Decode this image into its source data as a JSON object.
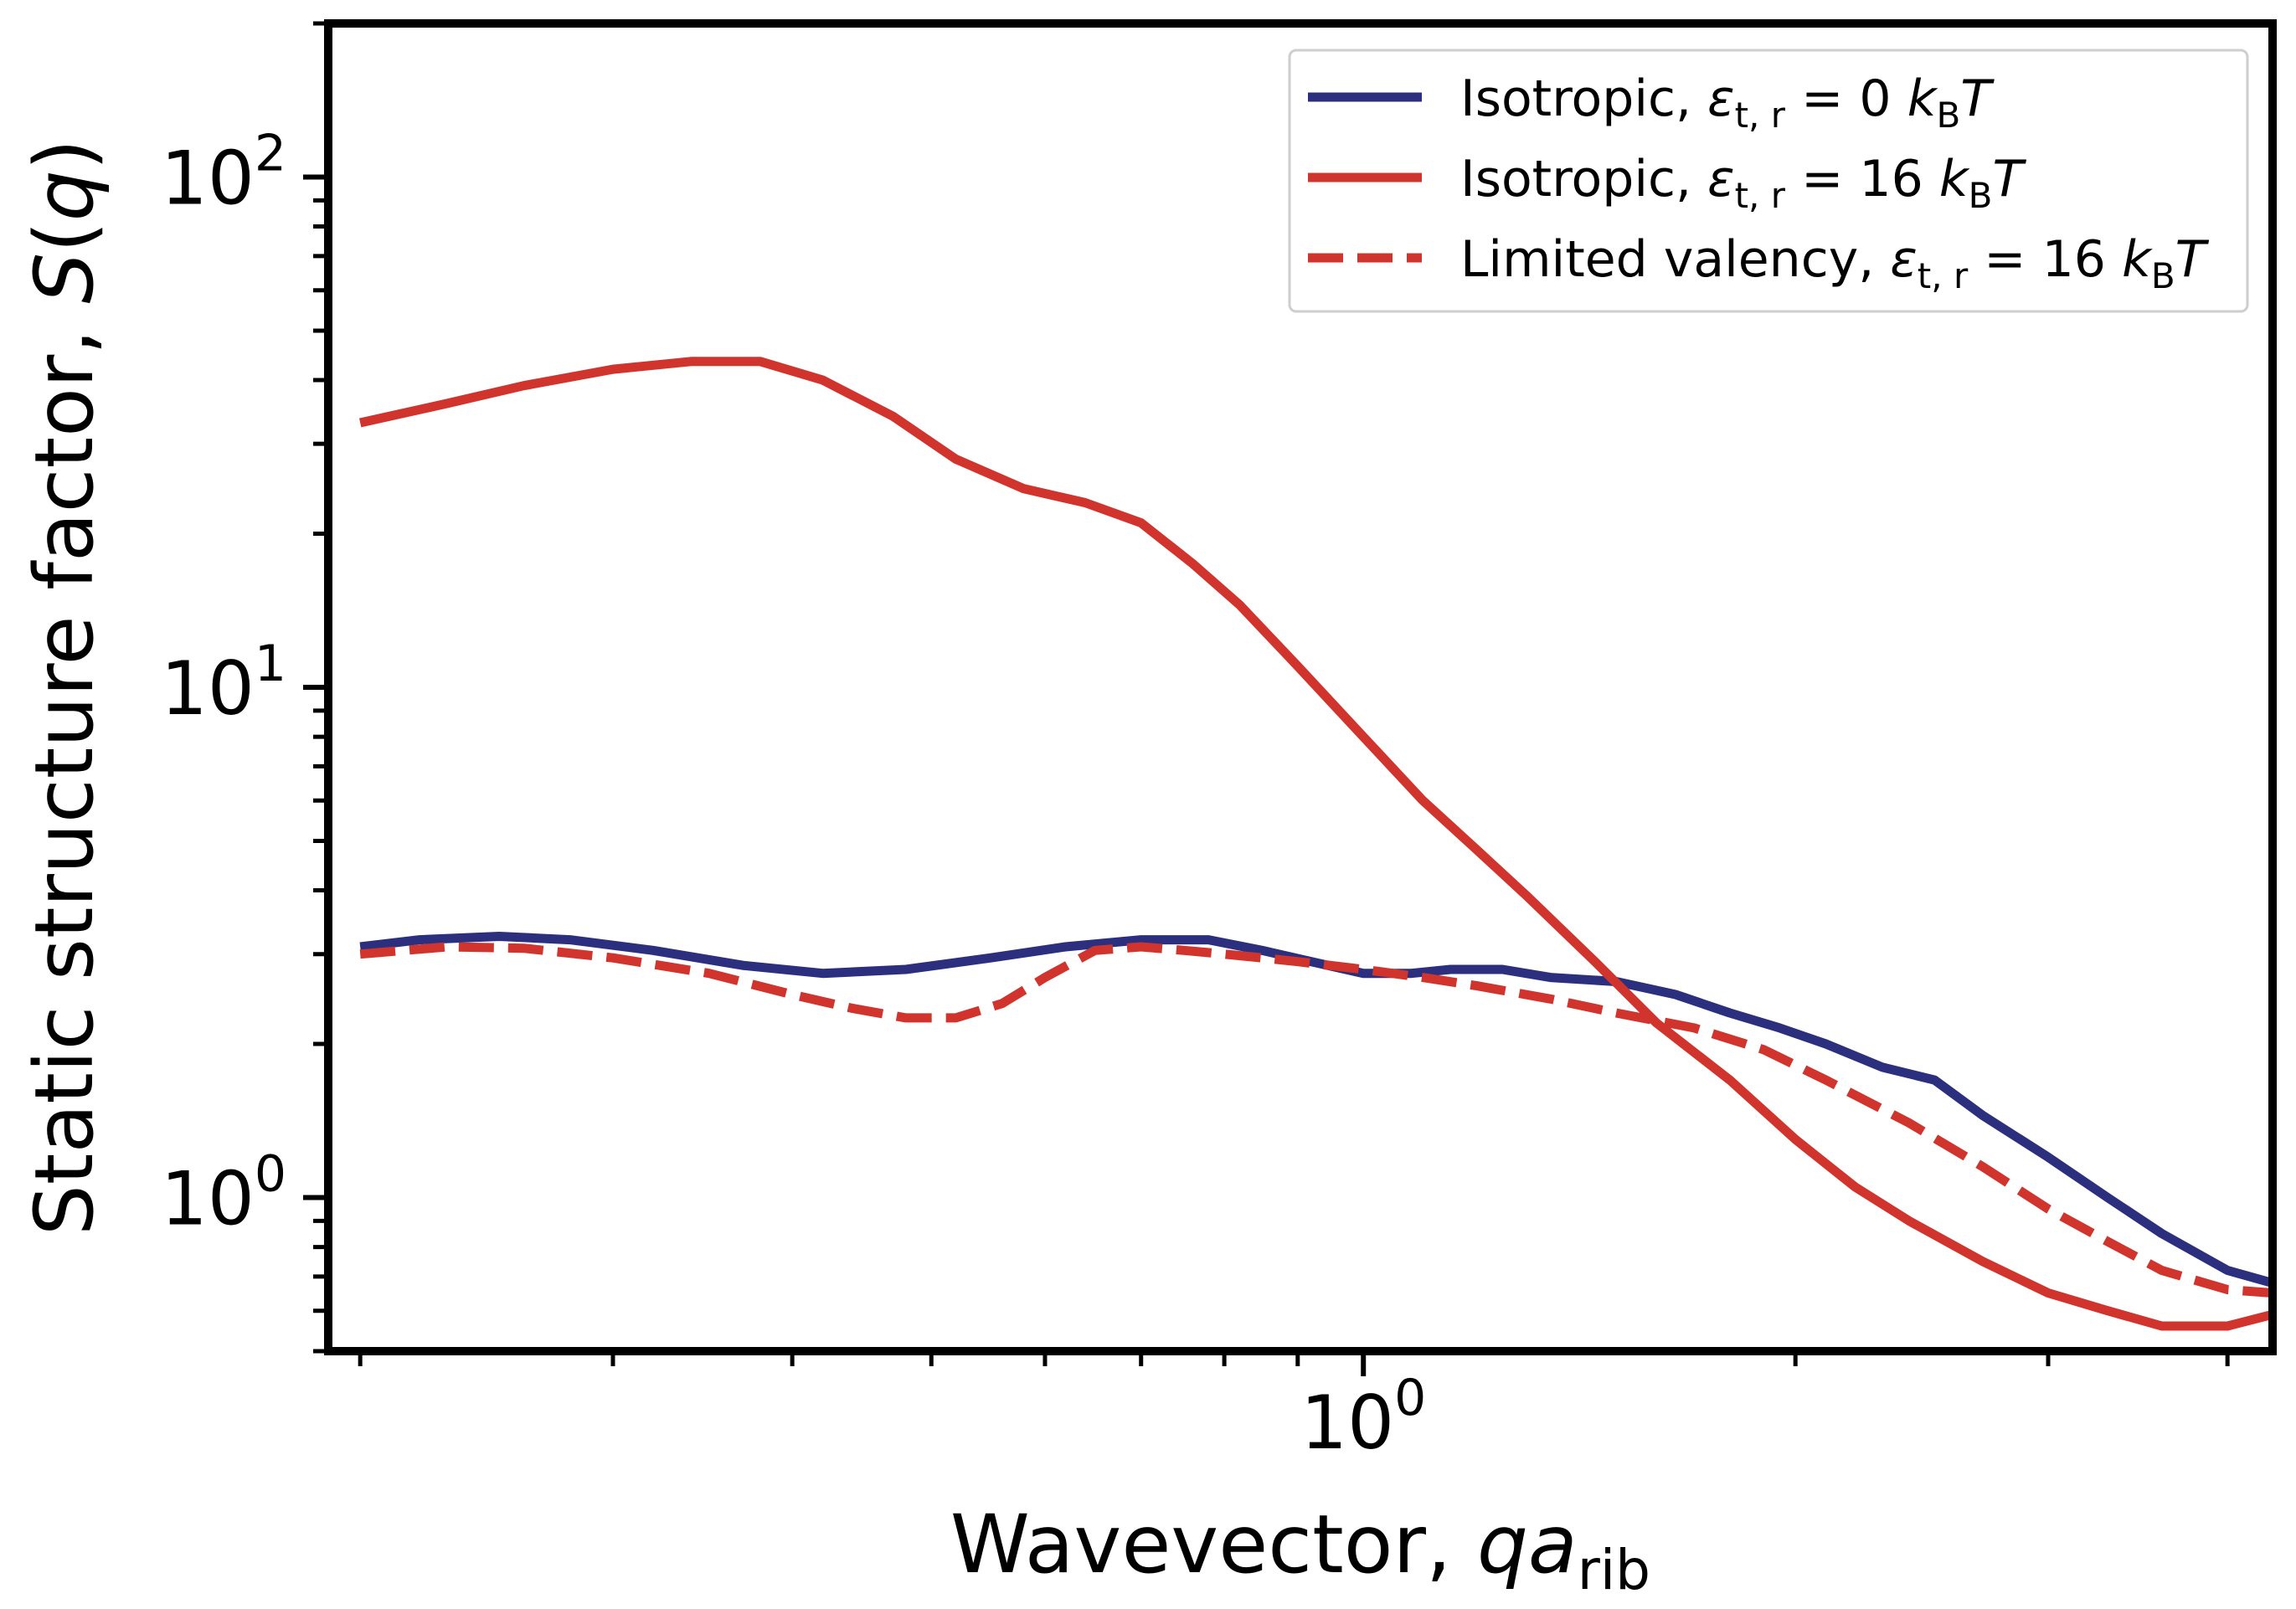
{
  "chart_data": {
    "type": "line",
    "xlabel": "Wavevector, qa_rib",
    "xlabel_parts": {
      "main": "Wavevector, ",
      "var": "qa",
      "sub": "rib"
    },
    "ylabel": "Static structure factor, S(q)",
    "ylabel_parts": {
      "main": "Static structure factor, ",
      "var": "S",
      "arg": "(q)"
    },
    "x_scale": "log",
    "y_scale": "log",
    "xlim": [
      0.19,
      4.3
    ],
    "ylim": [
      0.5,
      200
    ],
    "x_major_ticks": [
      {
        "value": 1,
        "mantissa": "10",
        "exponent": "0"
      }
    ],
    "x_minor_ticks": [
      0.2,
      0.3,
      0.4,
      0.5,
      0.6,
      0.7,
      0.8,
      0.9,
      2,
      3,
      4
    ],
    "y_major_ticks": [
      {
        "value": 1,
        "mantissa": "10",
        "exponent": "0"
      },
      {
        "value": 10,
        "mantissa": "10",
        "exponent": "1"
      },
      {
        "value": 100,
        "mantissa": "10",
        "exponent": "2"
      }
    ],
    "y_minor_ticks": [
      0.5,
      0.6,
      0.7,
      0.8,
      0.9,
      2,
      3,
      4,
      5,
      6,
      7,
      8,
      9,
      20,
      30,
      40,
      50,
      60,
      70,
      80,
      90,
      200
    ],
    "grid": false,
    "legend": {
      "placement": "upper-right"
    },
    "series": [
      {
        "name": "Isotropic, ε_t,r = 0 k_BT",
        "legend_parts": {
          "text": "Isotropic, ",
          "eps": "ε",
          "eps_sub": "t, r",
          "rest": " = 0 ",
          "k": "k",
          "k_sub": "B",
          "T": "T"
        },
        "color": "#2b2f7d",
        "dash": "solid",
        "x": [
          0.2,
          0.22,
          0.25,
          0.28,
          0.32,
          0.37,
          0.42,
          0.48,
          0.55,
          0.62,
          0.7,
          0.78,
          0.85,
          0.92,
          1.0,
          1.08,
          1.15,
          1.25,
          1.35,
          1.5,
          1.65,
          1.8,
          1.95,
          2.1,
          2.3,
          2.5,
          2.7,
          3.0,
          3.3,
          3.6,
          4.0,
          4.3
        ],
        "y": [
          3.1,
          3.2,
          3.25,
          3.2,
          3.05,
          2.85,
          2.75,
          2.8,
          2.95,
          3.1,
          3.2,
          3.2,
          3.05,
          2.9,
          2.75,
          2.75,
          2.8,
          2.8,
          2.7,
          2.65,
          2.5,
          2.3,
          2.15,
          2.0,
          1.8,
          1.7,
          1.45,
          1.2,
          1.0,
          0.85,
          0.72,
          0.68
        ]
      },
      {
        "name": "Isotropic, ε_t,r = 16 k_BT",
        "legend_parts": {
          "text": "Isotropic, ",
          "eps": "ε",
          "eps_sub": "t, r",
          "rest": " = 16 ",
          "k": "k",
          "k_sub": "B",
          "T": "T"
        },
        "color": "#d0342c",
        "dash": "solid",
        "x": [
          0.2,
          0.23,
          0.26,
          0.3,
          0.34,
          0.38,
          0.42,
          0.47,
          0.52,
          0.58,
          0.64,
          0.7,
          0.76,
          0.82,
          0.9,
          1.0,
          1.1,
          1.2,
          1.3,
          1.45,
          1.6,
          1.8,
          2.0,
          2.2,
          2.4,
          2.7,
          3.0,
          3.3,
          3.6,
          4.0,
          4.3
        ],
        "y": [
          33.0,
          36.0,
          39.0,
          42.0,
          43.5,
          43.5,
          40.0,
          34.0,
          28.0,
          24.5,
          23.0,
          21.0,
          17.5,
          14.5,
          11.0,
          8.0,
          6.0,
          4.8,
          3.9,
          2.9,
          2.2,
          1.7,
          1.3,
          1.05,
          0.9,
          0.75,
          0.65,
          0.6,
          0.56,
          0.56,
          0.59
        ]
      },
      {
        "name": "Limited valency, ε_t,r = 16 k_BT",
        "legend_parts": {
          "text": "Limited valency, ",
          "eps": "ε",
          "eps_sub": "t, r",
          "rest": " = 16 ",
          "k": "k",
          "k_sub": "B",
          "T": "T"
        },
        "color": "#d0342c",
        "dash": "dashed",
        "x": [
          0.2,
          0.23,
          0.26,
          0.3,
          0.35,
          0.4,
          0.44,
          0.48,
          0.52,
          0.56,
          0.6,
          0.65,
          0.7,
          0.75,
          0.8,
          0.85,
          0.9,
          1.0,
          1.1,
          1.2,
          1.35,
          1.5,
          1.7,
          1.9,
          2.1,
          2.4,
          2.7,
          3.0,
          3.3,
          3.6,
          4.0,
          4.3
        ],
        "y": [
          3.0,
          3.1,
          3.08,
          2.95,
          2.75,
          2.5,
          2.35,
          2.25,
          2.25,
          2.4,
          2.7,
          3.05,
          3.1,
          3.05,
          3.0,
          2.95,
          2.9,
          2.8,
          2.7,
          2.6,
          2.45,
          2.3,
          2.15,
          1.95,
          1.7,
          1.4,
          1.15,
          0.95,
          0.82,
          0.72,
          0.66,
          0.65
        ]
      }
    ]
  }
}
